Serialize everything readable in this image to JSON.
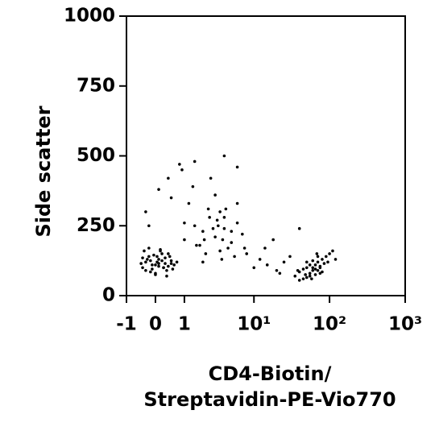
{
  "chart_data": {
    "type": "scatter",
    "xscale": "asinh",
    "color": "#000000",
    "ylabel": "Side scatter",
    "xlabel": [
      "CD4-Biotin/",
      "Streptavidin-PE-Vio770"
    ],
    "xlim": [
      -1,
      1000
    ],
    "xticks": [
      -1,
      0,
      1,
      {
        "value": 10,
        "label": "10¹"
      },
      {
        "value": 100,
        "label": "10²"
      },
      {
        "value": 1000,
        "label": "10³"
      }
    ],
    "ylim": [
      0,
      1000
    ],
    "yticks": [
      0,
      250,
      500,
      750,
      1000
    ],
    "x": [
      -0.4,
      -0.3,
      -0.2,
      -0.1,
      0,
      0.1,
      0.2,
      0.3,
      0.4,
      0.5,
      -0.35,
      -0.15,
      0.05,
      0.25,
      0.45,
      0.6,
      -0.25,
      0,
      0.15,
      0.35,
      -0.45,
      -0.05,
      0.1,
      0.3,
      0.55,
      0.7,
      -0.3,
      -0.1,
      0.2,
      0.4,
      -0.2,
      0,
      0.25,
      0.5,
      -0.4,
      0.05,
      0.15,
      0.35,
      -0.15,
      0.1,
      1,
      1.5,
      2,
      2.5,
      3,
      3.5,
      4,
      5,
      6,
      7,
      1.2,
      1.8,
      2.2,
      2.8,
      3.2,
      3.8,
      4.5,
      5.5,
      1.4,
      2.4,
      3,
      4,
      6,
      1,
      2,
      3.5,
      5,
      2.6,
      1.6,
      3.3,
      4.2,
      0.9,
      7.5,
      2.1,
      3.7,
      -0.3,
      0.4,
      0.8,
      0.1,
      12,
      15,
      20,
      25,
      8,
      10,
      30,
      18,
      -0.2,
      0.5,
      1.5,
      4,
      6,
      14,
      22,
      40,
      35,
      40,
      45,
      50,
      55,
      60,
      65,
      70,
      75,
      80,
      90,
      100,
      110,
      45,
      55,
      65,
      75,
      85,
      50,
      60,
      70,
      80,
      40,
      50,
      60,
      70,
      95,
      120,
      55,
      65,
      75,
      38,
      48,
      58,
      68
    ],
    "y": [
      100,
      120,
      140,
      95,
      110,
      130,
      150,
      115,
      105,
      125,
      160,
      85,
      120,
      100,
      140,
      110,
      130,
      75,
      165,
      90,
      115,
      145,
      105,
      135,
      95,
      120,
      90,
      110,
      125,
      150,
      170,
      80,
      100,
      115,
      135,
      140,
      160,
      70,
      125,
      115,
      200,
      250,
      230,
      280,
      210,
      300,
      240,
      190,
      260,
      220,
      330,
      180,
      150,
      240,
      270,
      200,
      170,
      140,
      390,
      310,
      360,
      280,
      330,
      260,
      120,
      160,
      230,
      420,
      180,
      250,
      310,
      450,
      170,
      200,
      130,
      300,
      420,
      470,
      380,
      130,
      110,
      90,
      120,
      150,
      100,
      140,
      200,
      250,
      350,
      480,
      500,
      460,
      170,
      80,
      240,
      70,
      85,
      95,
      100,
      80,
      90,
      110,
      120,
      100,
      130,
      140,
      150,
      160,
      60,
      70,
      75,
      105,
      115,
      120,
      125,
      90,
      85,
      55,
      65,
      100,
      140,
      120,
      130,
      110,
      95,
      80,
      90,
      75,
      60,
      150
    ]
  }
}
